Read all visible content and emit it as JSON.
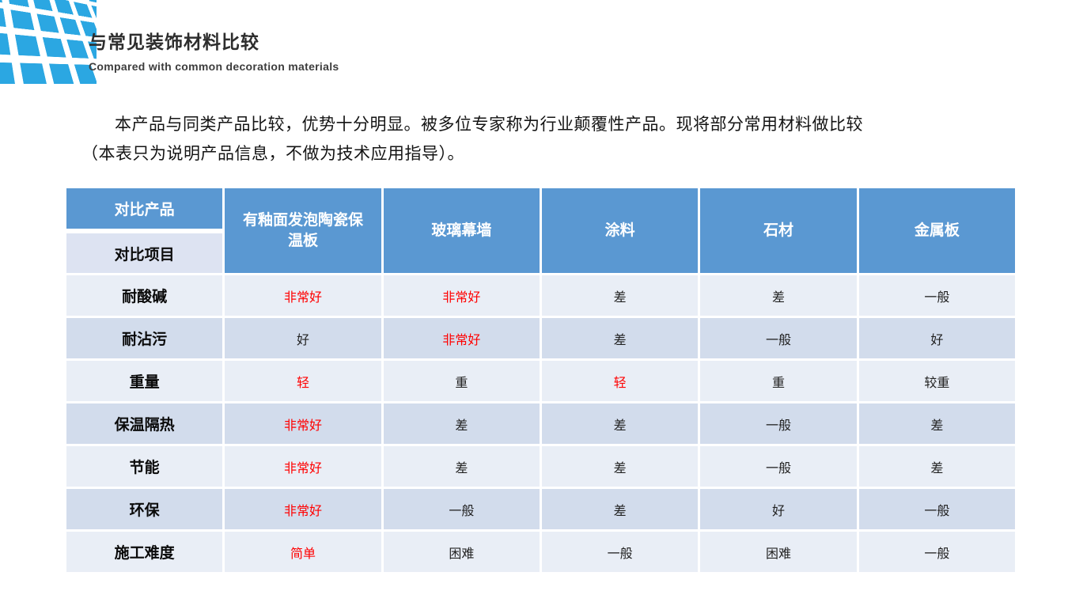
{
  "logo": {
    "label": "blue-grid-logo",
    "color": "#2ba7e2"
  },
  "header": {
    "title": "与常见装饰材料比较",
    "subtitle": "Compared with common decoration materials"
  },
  "intro": {
    "line1": "本产品与同类产品比较，优势十分明显。被多位专家称为行业颠覆性产品。现将部分常用材料做比较",
    "line2": "（本表只为说明产品信息，不做为技术应用指导）。"
  },
  "table": {
    "corner": {
      "top": "对比产品",
      "bottom": "对比项目"
    },
    "columns": [
      "有釉面发泡陶瓷保温板",
      "玻璃幕墙",
      "涂料",
      "石材",
      "金属板"
    ],
    "rows": [
      {
        "label": "耐酸碱",
        "values": [
          {
            "text": "非常好",
            "cls": "v red"
          },
          {
            "text": "非常好",
            "cls": "v red"
          },
          {
            "text": "差",
            "cls": "v"
          },
          {
            "text": "差",
            "cls": "v"
          },
          {
            "text": "一般",
            "cls": "v"
          }
        ]
      },
      {
        "label": "耐沾污",
        "values": [
          {
            "text": "好",
            "cls": "v"
          },
          {
            "text": "非常好",
            "cls": "v red"
          },
          {
            "text": "差",
            "cls": "v"
          },
          {
            "text": "一般",
            "cls": "v"
          },
          {
            "text": "好",
            "cls": "v"
          }
        ]
      },
      {
        "label": "重量",
        "values": [
          {
            "text": "轻",
            "cls": "v red"
          },
          {
            "text": "重",
            "cls": "v"
          },
          {
            "text": "轻",
            "cls": "v red"
          },
          {
            "text": "重",
            "cls": "v"
          },
          {
            "text": "较重",
            "cls": "v"
          }
        ]
      },
      {
        "label": "保温隔热",
        "values": [
          {
            "text": "非常好",
            "cls": "v red"
          },
          {
            "text": "差",
            "cls": "v"
          },
          {
            "text": "差",
            "cls": "v"
          },
          {
            "text": "一般",
            "cls": "v"
          },
          {
            "text": "差",
            "cls": "v"
          }
        ]
      },
      {
        "label": "节能",
        "values": [
          {
            "text": "非常好",
            "cls": "v red"
          },
          {
            "text": "差",
            "cls": "v"
          },
          {
            "text": "差",
            "cls": "v"
          },
          {
            "text": "一般",
            "cls": "v"
          },
          {
            "text": "差",
            "cls": "v"
          }
        ]
      },
      {
        "label": "环保",
        "values": [
          {
            "text": "非常好",
            "cls": "v red"
          },
          {
            "text": "一般",
            "cls": "v"
          },
          {
            "text": "差",
            "cls": "v"
          },
          {
            "text": "好",
            "cls": "v"
          },
          {
            "text": "一般",
            "cls": "v"
          }
        ]
      },
      {
        "label": "施工难度",
        "values": [
          {
            "text": "简单",
            "cls": "v red"
          },
          {
            "text": "困难",
            "cls": "v"
          },
          {
            "text": "一般",
            "cls": "v"
          },
          {
            "text": "困难",
            "cls": "v"
          },
          {
            "text": "一般",
            "cls": "v"
          }
        ]
      }
    ],
    "colors": {
      "header_bg": "#5a98d2",
      "corner_bottom_bg": "#dde3f2",
      "row_light_bg": "#e9eef6",
      "row_dark_bg": "#d2dcec",
      "highlight_text": "#ff0000",
      "logo_blue": "#2ba7e2"
    }
  }
}
